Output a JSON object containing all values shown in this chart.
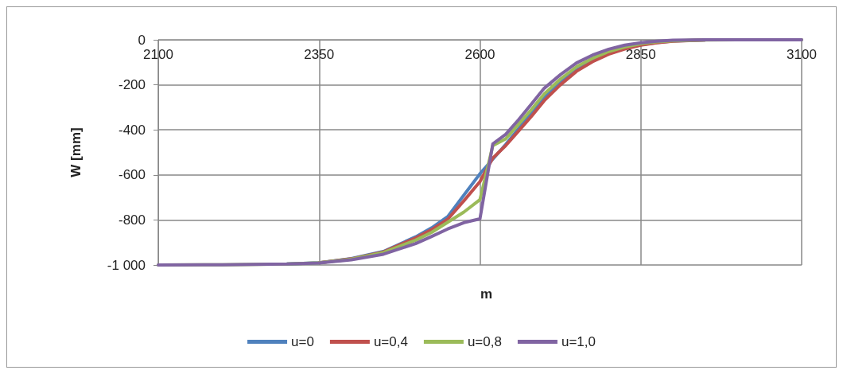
{
  "chart_data": {
    "type": "line",
    "xlabel": "m",
    "ylabel": "W [mm]",
    "x": [
      2100,
      2200,
      2300,
      2350,
      2400,
      2450,
      2500,
      2525,
      2550,
      2575,
      2600,
      2620,
      2640,
      2660,
      2680,
      2700,
      2725,
      2750,
      2775,
      2800,
      2825,
      2850,
      2875,
      2900,
      2950,
      3000,
      3100
    ],
    "series": [
      {
        "name": "u=0",
        "color": "#4f81bd",
        "values": [
          null,
          null,
          -996,
          -990,
          -972,
          -940,
          -875,
          -835,
          -785,
          -690,
          -595,
          -530,
          -465,
          -395,
          -325,
          -255,
          -185,
          -135,
          -92,
          -60,
          -38,
          -22,
          -12,
          -5,
          -1,
          null,
          null
        ]
      },
      {
        "name": "u=0,4",
        "color": "#c0504d",
        "values": [
          null,
          null,
          null,
          -990,
          -973,
          -942,
          -880,
          -843,
          -797,
          -715,
          -630,
          -525,
          -470,
          -405,
          -340,
          -270,
          -200,
          -140,
          -97,
          -64,
          -41,
          -24,
          -13,
          -6,
          -1,
          null,
          null
        ]
      },
      {
        "name": "u=0,8",
        "color": "#9bbb59",
        "values": [
          -1000,
          -999,
          -996,
          -990,
          -974,
          -945,
          -890,
          -855,
          -810,
          -765,
          -710,
          -470,
          -440,
          -375,
          -310,
          -240,
          -175,
          -120,
          -82,
          -52,
          -32,
          -18,
          -9,
          -4,
          -1,
          0,
          0
        ]
      },
      {
        "name": "u=1,0",
        "color": "#8064a2",
        "values": [
          -1000,
          -999,
          -996,
          -991,
          -977,
          -952,
          -905,
          -873,
          -840,
          -812,
          -795,
          -462,
          -420,
          -355,
          -285,
          -215,
          -155,
          -103,
          -68,
          -42,
          -24,
          -13,
          -6,
          -2,
          0,
          0,
          0
        ]
      }
    ],
    "xlim": [
      2100,
      3100
    ],
    "xticks": [
      2100,
      2350,
      2600,
      2850,
      3100
    ],
    "ylim": [
      -1000,
      0
    ],
    "yticks": [
      {
        "value": -1000,
        "label": "-1 000"
      },
      -800,
      -600,
      -400,
      -200,
      0
    ],
    "grid": true,
    "legend": "bottom",
    "marker": "none",
    "line_style": "solid"
  }
}
